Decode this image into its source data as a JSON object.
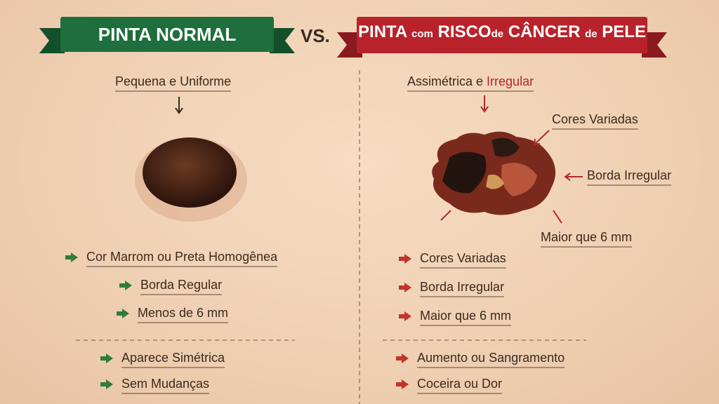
{
  "header": {
    "left_title": "PINTA NORMAL",
    "vs": "VS.",
    "right_title": [
      "PINTA",
      "com",
      "RISCO",
      "de",
      "CÂNCER",
      "de",
      "PELE"
    ]
  },
  "left": {
    "caption": "Pequena e Uniforme",
    "features": [
      "Cor Marrom ou Preta Homogênea",
      "Borda Regular",
      "Menos de 6 mm"
    ],
    "extra": [
      "Aparece Simétrica",
      "Sem Mudanças"
    ]
  },
  "right": {
    "caption": [
      "Assimétrica e",
      "Irregular"
    ],
    "callouts": [
      "Cores Variadas",
      "Borda Irregular",
      "Maior que 6 mm"
    ],
    "features": [
      "Cores Variadas",
      "Borda Irregular",
      "Maior que 6 mm"
    ],
    "extra": [
      "Aumento ou Sangramento",
      "Coceira ou Dor"
    ]
  }
}
